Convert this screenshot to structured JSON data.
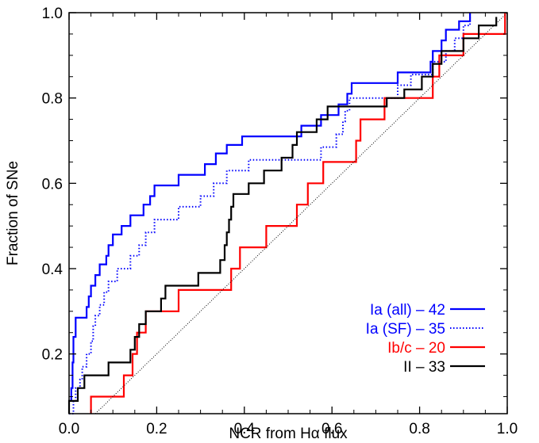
{
  "chart_data": {
    "type": "line",
    "title": "",
    "xlabel": "NCR from Hα flux",
    "ylabel": "Fraction of SNe",
    "xlim": [
      0.0,
      1.0
    ],
    "ylim": [
      0.06,
      1.0
    ],
    "x_ticks": [
      0.0,
      0.2,
      0.4,
      0.6,
      0.8,
      1.0
    ],
    "x_tick_labels": [
      "0.0",
      "0.2",
      "0.4",
      "0.6",
      "0.8",
      "1.0"
    ],
    "y_ticks": [
      0.2,
      0.4,
      0.6,
      0.8,
      1.0
    ],
    "y_tick_labels": [
      "0.2",
      "0.4",
      "0.6",
      "0.8",
      "1.0"
    ],
    "grid": false,
    "legend_position": "bottom-right",
    "series": [
      {
        "name": "Ia (all) – 42",
        "color": "#0000ff",
        "style": "solid",
        "points": [
          [
            0.0,
            0.09
          ],
          [
            0.005,
            0.12
          ],
          [
            0.008,
            0.18
          ],
          [
            0.01,
            0.24
          ],
          [
            0.015,
            0.285
          ],
          [
            0.04,
            0.31
          ],
          [
            0.045,
            0.335
          ],
          [
            0.05,
            0.36
          ],
          [
            0.06,
            0.385
          ],
          [
            0.07,
            0.41
          ],
          [
            0.085,
            0.43
          ],
          [
            0.09,
            0.455
          ],
          [
            0.1,
            0.48
          ],
          [
            0.12,
            0.5
          ],
          [
            0.14,
            0.525
          ],
          [
            0.17,
            0.55
          ],
          [
            0.185,
            0.57
          ],
          [
            0.195,
            0.595
          ],
          [
            0.25,
            0.62
          ],
          [
            0.31,
            0.645
          ],
          [
            0.335,
            0.67
          ],
          [
            0.36,
            0.69
          ],
          [
            0.395,
            0.71
          ],
          [
            0.53,
            0.735
          ],
          [
            0.575,
            0.76
          ],
          [
            0.615,
            0.785
          ],
          [
            0.635,
            0.81
          ],
          [
            0.645,
            0.835
          ],
          [
            0.75,
            0.86
          ],
          [
            0.775,
            0.86
          ],
          [
            0.825,
            0.885
          ],
          [
            0.83,
            0.91
          ],
          [
            0.85,
            0.935
          ],
          [
            0.86,
            0.96
          ],
          [
            0.89,
            0.98
          ],
          [
            0.915,
            1.0
          ]
        ]
      },
      {
        "name": "Ia (SF) – 35",
        "color": "#0000ff",
        "style": "dotted",
        "points": [
          [
            0.0,
            0.06
          ],
          [
            0.01,
            0.09
          ],
          [
            0.015,
            0.12
          ],
          [
            0.025,
            0.14
          ],
          [
            0.03,
            0.17
          ],
          [
            0.04,
            0.2
          ],
          [
            0.05,
            0.23
          ],
          [
            0.055,
            0.265
          ],
          [
            0.06,
            0.29
          ],
          [
            0.07,
            0.315
          ],
          [
            0.08,
            0.345
          ],
          [
            0.09,
            0.37
          ],
          [
            0.11,
            0.4
          ],
          [
            0.14,
            0.43
          ],
          [
            0.16,
            0.455
          ],
          [
            0.175,
            0.485
          ],
          [
            0.195,
            0.515
          ],
          [
            0.25,
            0.545
          ],
          [
            0.3,
            0.57
          ],
          [
            0.33,
            0.6
          ],
          [
            0.36,
            0.63
          ],
          [
            0.41,
            0.655
          ],
          [
            0.575,
            0.685
          ],
          [
            0.61,
            0.715
          ],
          [
            0.625,
            0.745
          ],
          [
            0.63,
            0.77
          ],
          [
            0.64,
            0.8
          ],
          [
            0.75,
            0.83
          ],
          [
            0.78,
            0.855
          ],
          [
            0.83,
            0.885
          ],
          [
            0.86,
            0.91
          ],
          [
            0.88,
            0.94
          ],
          [
            0.9,
            0.97
          ],
          [
            0.915,
            1.0
          ]
        ]
      },
      {
        "name": "Ib/c – 20",
        "color": "#ff0000",
        "style": "solid",
        "points": [
          [
            0.05,
            0.06
          ],
          [
            0.05,
            0.1
          ],
          [
            0.125,
            0.15
          ],
          [
            0.145,
            0.2
          ],
          [
            0.155,
            0.25
          ],
          [
            0.175,
            0.3
          ],
          [
            0.25,
            0.35
          ],
          [
            0.37,
            0.4
          ],
          [
            0.39,
            0.45
          ],
          [
            0.45,
            0.5
          ],
          [
            0.52,
            0.55
          ],
          [
            0.545,
            0.6
          ],
          [
            0.58,
            0.65
          ],
          [
            0.655,
            0.7
          ],
          [
            0.665,
            0.75
          ],
          [
            0.72,
            0.8
          ],
          [
            0.83,
            0.85
          ],
          [
            0.845,
            0.9
          ],
          [
            0.9,
            0.95
          ],
          [
            0.995,
            1.0
          ]
        ]
      },
      {
        "name": "II – 33",
        "color": "#000000",
        "style": "solid",
        "points": [
          [
            0.0,
            0.06
          ],
          [
            0.0,
            0.09
          ],
          [
            0.02,
            0.12
          ],
          [
            0.035,
            0.15
          ],
          [
            0.06,
            0.15
          ],
          [
            0.09,
            0.18
          ],
          [
            0.14,
            0.21
          ],
          [
            0.15,
            0.24
          ],
          [
            0.16,
            0.27
          ],
          [
            0.175,
            0.3
          ],
          [
            0.21,
            0.33
          ],
          [
            0.22,
            0.36
          ],
          [
            0.295,
            0.39
          ],
          [
            0.345,
            0.42
          ],
          [
            0.355,
            0.455
          ],
          [
            0.36,
            0.485
          ],
          [
            0.365,
            0.515
          ],
          [
            0.37,
            0.545
          ],
          [
            0.375,
            0.575
          ],
          [
            0.41,
            0.6
          ],
          [
            0.445,
            0.63
          ],
          [
            0.485,
            0.66
          ],
          [
            0.51,
            0.69
          ],
          [
            0.52,
            0.72
          ],
          [
            0.565,
            0.75
          ],
          [
            0.59,
            0.78
          ],
          [
            0.725,
            0.8
          ],
          [
            0.765,
            0.82
          ],
          [
            0.805,
            0.85
          ],
          [
            0.83,
            0.88
          ],
          [
            0.85,
            0.91
          ],
          [
            0.9,
            0.94
          ],
          [
            0.935,
            0.97
          ],
          [
            0.975,
            0.99
          ]
        ]
      },
      {
        "name": "",
        "color": "#000000",
        "style": "thin-dotted",
        "points": [
          [
            0.06,
            0.06
          ],
          [
            1.0,
            1.0
          ]
        ]
      }
    ]
  }
}
